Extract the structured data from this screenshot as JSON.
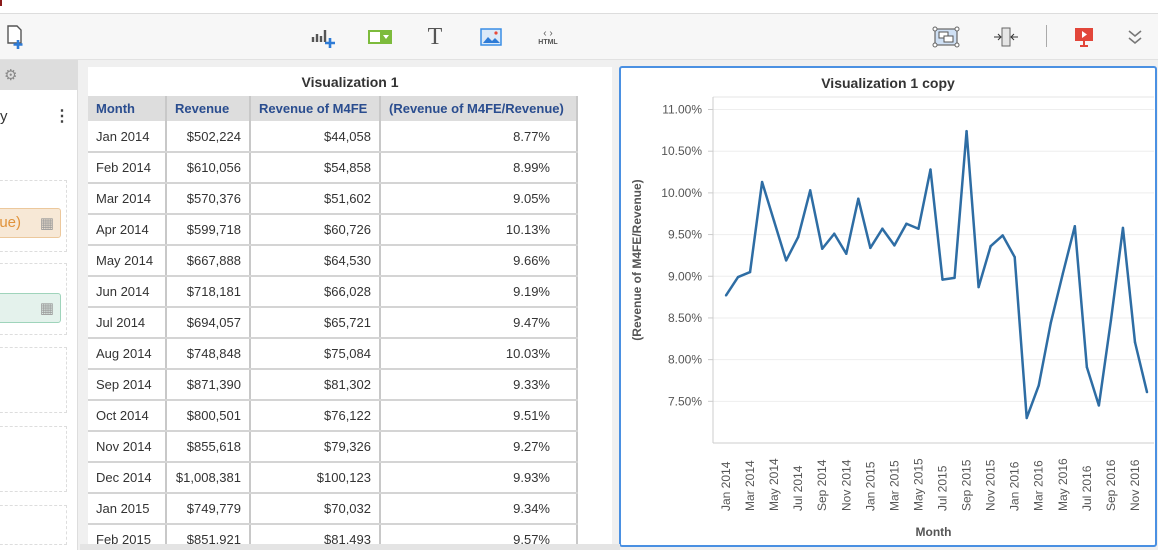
{
  "toolbar": {
    "left": [
      {
        "icon": "new-page-icon"
      }
    ],
    "center": [
      {
        "icon": "add-chart-icon"
      },
      {
        "icon": "dropdown-filter-icon"
      },
      {
        "icon": "text-icon",
        "label": "T"
      },
      {
        "icon": "image-icon"
      },
      {
        "icon": "html-icon",
        "label": "HTML"
      }
    ],
    "right": [
      {
        "icon": "group-icon"
      },
      {
        "icon": "fit-width-icon"
      },
      {
        "icon": "presentation-icon"
      },
      {
        "icon": "more-chevrons-icon"
      }
    ]
  },
  "left_panel": {
    "partial_title": "y",
    "pill_orange": "nue)",
    "colors": {
      "orange": "#f7e8d6",
      "green": "#e4f2ec"
    }
  },
  "viz1": {
    "title": "Visualization 1",
    "columns": [
      "Month",
      "Revenue",
      "Revenue of M4FE",
      "(Revenue of M4FE/Revenue)"
    ],
    "rows": [
      [
        "Jan 2014",
        "$502,224",
        "$44,058",
        "8.77%"
      ],
      [
        "Feb 2014",
        "$610,056",
        "$54,858",
        "8.99%"
      ],
      [
        "Mar 2014",
        "$570,376",
        "$51,602",
        "9.05%"
      ],
      [
        "Apr 2014",
        "$599,718",
        "$60,726",
        "10.13%"
      ],
      [
        "May 2014",
        "$667,888",
        "$64,530",
        "9.66%"
      ],
      [
        "Jun 2014",
        "$718,181",
        "$66,028",
        "9.19%"
      ],
      [
        "Jul 2014",
        "$694,057",
        "$65,721",
        "9.47%"
      ],
      [
        "Aug 2014",
        "$748,848",
        "$75,084",
        "10.03%"
      ],
      [
        "Sep 2014",
        "$871,390",
        "$81,302",
        "9.33%"
      ],
      [
        "Oct 2014",
        "$800,501",
        "$76,122",
        "9.51%"
      ],
      [
        "Nov 2014",
        "$855,618",
        "$79,326",
        "9.27%"
      ],
      [
        "Dec 2014",
        "$1,008,381",
        "$100,123",
        "9.93%"
      ],
      [
        "Jan 2015",
        "$749,779",
        "$70,032",
        "9.34%"
      ],
      [
        "Feb 2015",
        "$851,921",
        "$81,493",
        "9.57%"
      ]
    ]
  },
  "viz2": {
    "title": "Visualization 1 copy",
    "accent": "#4a90e2"
  },
  "chart_data": {
    "type": "line",
    "xlabel": "Month",
    "ylabel": "(Revenue of M4FE/Revenue)",
    "x": [
      "Jan 2014",
      "Feb 2014",
      "Mar 2014",
      "Apr 2014",
      "May 2014",
      "Jun 2014",
      "Jul 2014",
      "Aug 2014",
      "Sep 2014",
      "Oct 2014",
      "Nov 2014",
      "Dec 2014",
      "Jan 2015",
      "Feb 2015",
      "Mar 2015",
      "Apr 2015",
      "May 2015",
      "Jun 2015",
      "Jul 2015",
      "Aug 2015",
      "Sep 2015",
      "Oct 2015",
      "Nov 2015",
      "Dec 2015",
      "Jan 2016",
      "Feb 2016",
      "Mar 2016",
      "Apr 2016",
      "May 2016",
      "Jun 2016",
      "Jul 2016",
      "Aug 2016",
      "Sep 2016",
      "Oct 2016",
      "Nov 2016",
      "Dec 2016"
    ],
    "x_tick_labels": [
      "Jan 2014",
      "Mar 2014",
      "May 2014",
      "Jul 2014",
      "Sep 2014",
      "Nov 2014",
      "Jan 2015",
      "Mar 2015",
      "May 2015",
      "Jul 2015",
      "Sep 2015",
      "Nov 2015",
      "Jan 2016",
      "Mar 2016",
      "May 2016",
      "Jul 2016",
      "Sep 2016",
      "Nov 2016"
    ],
    "values": [
      8.77,
      8.99,
      9.05,
      10.13,
      9.66,
      9.19,
      9.47,
      10.03,
      9.33,
      9.51,
      9.27,
      9.93,
      9.34,
      9.57,
      9.37,
      9.63,
      9.57,
      10.28,
      8.96,
      8.98,
      10.74,
      8.87,
      9.36,
      9.49,
      9.23,
      7.3,
      7.69,
      8.44,
      9.03,
      9.6,
      7.91,
      7.45,
      8.47,
      9.58,
      8.21,
      7.61
    ],
    "y_ticks": [
      "11.00%",
      "10.50%",
      "10.00%",
      "9.50%",
      "9.00%",
      "8.50%",
      "8.00%",
      "7.50%"
    ],
    "ylim": [
      7.0,
      11.15
    ],
    "grid": true,
    "color": "#2e6da4"
  }
}
